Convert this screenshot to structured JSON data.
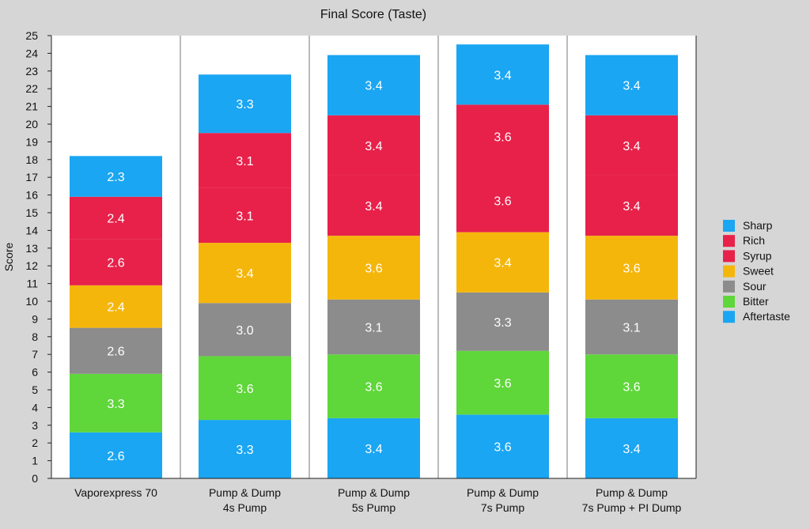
{
  "chart_data": {
    "type": "bar",
    "stacked": true,
    "title": "Final Score (Taste)",
    "xlabel": "",
    "ylabel": "Score",
    "ylim": [
      0,
      25
    ],
    "yticks": [
      0,
      1,
      2,
      3,
      4,
      5,
      6,
      7,
      8,
      9,
      10,
      11,
      12,
      13,
      14,
      15,
      16,
      17,
      18,
      19,
      20,
      21,
      22,
      23,
      24,
      25
    ],
    "categories": [
      [
        "Vaporexpress 70"
      ],
      [
        "Pump & Dump",
        "4s Pump"
      ],
      [
        "Pump & Dump",
        "5s Pump"
      ],
      [
        "Pump & Dump",
        "7s Pump"
      ],
      [
        "Pump & Dump",
        "7s Pump + PI Dump"
      ]
    ],
    "series": [
      {
        "name": "Aftertaste",
        "color": "#1aa6f2",
        "values": [
          2.6,
          3.3,
          3.4,
          3.6,
          3.4
        ]
      },
      {
        "name": "Bitter",
        "color": "#5fd63a",
        "values": [
          3.3,
          3.6,
          3.6,
          3.6,
          3.6
        ]
      },
      {
        "name": "Sour",
        "color": "#8c8c8c",
        "values": [
          2.6,
          3.0,
          3.1,
          3.3,
          3.1
        ]
      },
      {
        "name": "Sweet",
        "color": "#f5b60c",
        "values": [
          2.4,
          3.4,
          3.6,
          3.4,
          3.6
        ]
      },
      {
        "name": "Syrup",
        "color": "#e8214a",
        "values": [
          2.6,
          3.1,
          3.4,
          3.6,
          3.4
        ]
      },
      {
        "name": "Rich",
        "color": "#e8214a",
        "values": [
          2.4,
          3.1,
          3.4,
          3.6,
          3.4
        ]
      },
      {
        "name": "Sharp",
        "color": "#1aa6f2",
        "values": [
          2.3,
          3.3,
          3.4,
          3.4,
          3.4
        ]
      }
    ],
    "legend": {
      "position": "right",
      "order": [
        "Sharp",
        "Rich",
        "Syrup",
        "Sweet",
        "Sour",
        "Bitter",
        "Aftertaste"
      ]
    },
    "grid": {
      "vertical_separators": true,
      "horizontal": false
    }
  }
}
